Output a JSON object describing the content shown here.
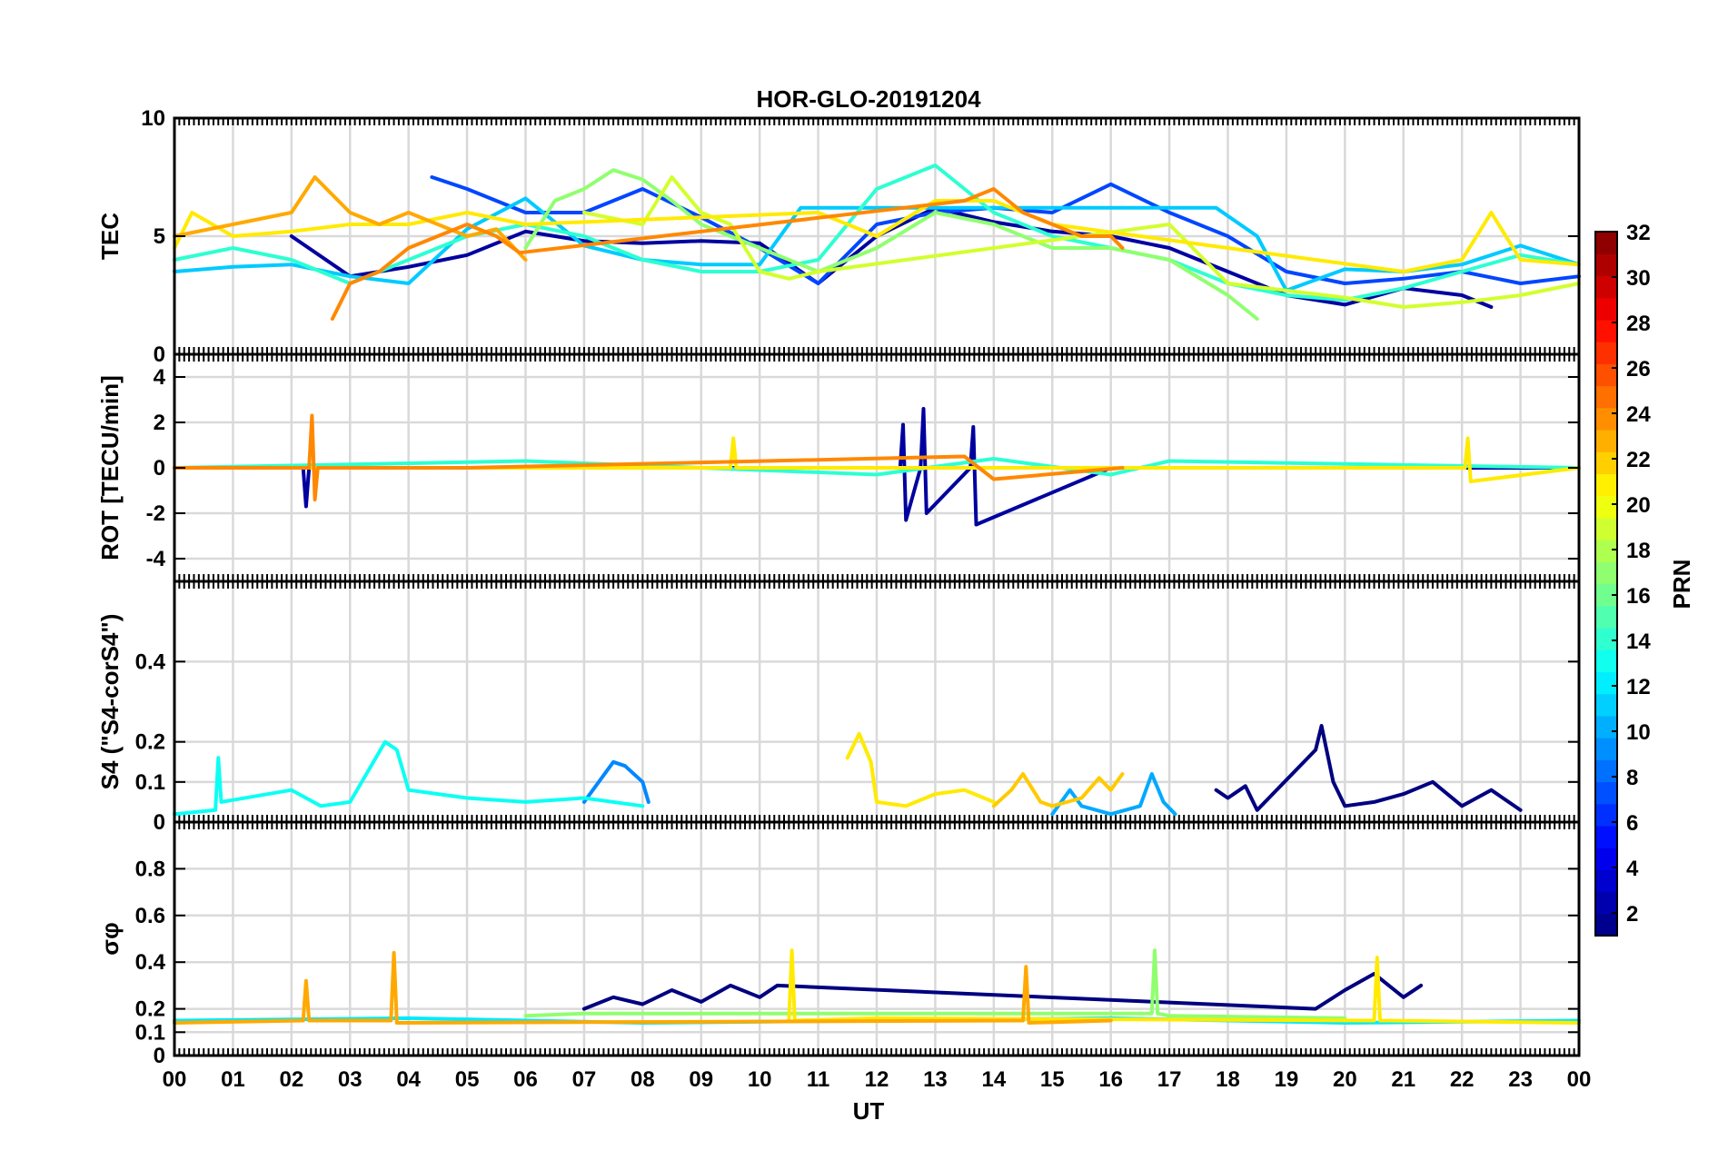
{
  "chart_data": {
    "type": "line",
    "title": "HOR-GLO-20191204",
    "xlabel": "UT",
    "x_tick_labels": [
      "00",
      "01",
      "02",
      "03",
      "04",
      "05",
      "06",
      "07",
      "08",
      "09",
      "10",
      "11",
      "12",
      "13",
      "14",
      "15",
      "16",
      "17",
      "18",
      "19",
      "20",
      "21",
      "22",
      "23",
      "00"
    ],
    "xlim": [
      0,
      24
    ],
    "grid": true,
    "colorbar": {
      "label": "PRN",
      "colormap": "jet",
      "range": [
        1,
        32
      ],
      "tick_labels": [
        "2",
        "4",
        "6",
        "8",
        "10",
        "12",
        "14",
        "16",
        "18",
        "20",
        "22",
        "24",
        "26",
        "28",
        "30",
        "32"
      ]
    },
    "panels": [
      {
        "ylabel": "TEC",
        "ylim": [
          0,
          10
        ],
        "y_tick_labels": [
          "0",
          "5",
          "10"
        ],
        "series": [
          {
            "name": "PRN 2",
            "prn": 2,
            "x": [
              2.0,
              3.0,
              4.0,
              5.0,
              6.0,
              7.0,
              8.0,
              9.0,
              10.0,
              11.0,
              12.0,
              13.0,
              14.0,
              15.0,
              16.0,
              17.0,
              18.0,
              19.0,
              20.0,
              21.0,
              22.0,
              22.5
            ],
            "y": [
              5.0,
              3.3,
              3.7,
              4.2,
              5.2,
              4.8,
              4.7,
              4.8,
              4.7,
              3.0,
              5.0,
              6.2,
              5.6,
              5.2,
              5.0,
              4.5,
              3.5,
              2.5,
              2.1,
              2.8,
              2.5,
              2.0
            ]
          },
          {
            "name": "PRN 7",
            "prn": 7,
            "x": [
              4.4,
              5.0,
              6.0,
              7.0,
              8.0,
              9.0,
              10.0,
              11.0,
              12.0,
              13.0,
              14.0,
              15.0,
              16.0,
              17.0,
              18.0,
              19.0,
              20.0,
              21.0,
              22.0,
              23.0,
              24.0
            ],
            "y": [
              7.5,
              7.0,
              6.0,
              6.0,
              7.0,
              5.8,
              4.5,
              3.0,
              5.5,
              6.0,
              6.2,
              6.0,
              7.2,
              6.0,
              5.0,
              3.5,
              3.0,
              3.2,
              3.5,
              3.0,
              3.3
            ]
          },
          {
            "name": "PRN 11",
            "prn": 11,
            "x": [
              0.0,
              1.0,
              2.0,
              3.0,
              4.0,
              5.0,
              6.0,
              7.0,
              8.0,
              9.0,
              10.0,
              10.7,
              17.8,
              18.5,
              19.0,
              20.0,
              21.0,
              22.0,
              23.0,
              24.0
            ],
            "y": [
              3.5,
              3.7,
              3.8,
              3.3,
              3.0,
              5.3,
              6.6,
              4.6,
              4.0,
              3.8,
              3.8,
              6.2,
              6.2,
              5.0,
              2.7,
              3.6,
              3.5,
              3.8,
              4.6,
              3.8
            ]
          },
          {
            "name": "PRN 14",
            "prn": 14,
            "x": [
              0.0,
              1.0,
              2.0,
              3.0,
              4.0,
              5.0,
              6.0,
              7.0,
              8.0,
              9.0,
              10.0,
              11.0,
              12.0,
              13.0,
              14.0,
              15.0,
              16.0,
              17.0,
              18.0,
              19.0,
              20.0,
              21.0,
              22.0,
              23.0,
              24.0
            ],
            "y": [
              4.0,
              4.5,
              4.0,
              3.0,
              4.0,
              5.0,
              5.5,
              5.0,
              4.0,
              3.5,
              3.5,
              4.0,
              7.0,
              8.0,
              6.0,
              5.0,
              4.5,
              4.0,
              3.0,
              2.5,
              2.3,
              2.8,
              3.5,
              4.2,
              3.8
            ]
          },
          {
            "name": "PRN 17",
            "prn": 17,
            "x": [
              6.0,
              6.5,
              7.0,
              7.5,
              8.0,
              8.5,
              9.0,
              10.0,
              11.0,
              12.0,
              13.0,
              14.0,
              15.0,
              16.0,
              17.0,
              18.0,
              18.5
            ],
            "y": [
              4.5,
              6.5,
              7.0,
              7.8,
              7.4,
              6.5,
              5.5,
              4.5,
              3.5,
              4.5,
              6.0,
              5.5,
              4.5,
              4.5,
              4.0,
              2.5,
              1.5
            ]
          },
          {
            "name": "PRN 19",
            "prn": 19,
            "x": [
              7.0,
              8.0,
              8.5,
              9.0,
              9.5,
              10.0,
              10.5,
              11.0,
              17.0,
              18.0,
              19.0,
              20.0,
              21.0,
              22.0,
              23.0,
              24.0
            ],
            "y": [
              6.0,
              5.5,
              7.5,
              6.0,
              5.5,
              3.5,
              3.2,
              3.5,
              5.5,
              3.0,
              2.7,
              2.4,
              2.0,
              2.2,
              2.5,
              3.0
            ]
          },
          {
            "name": "PRN 21",
            "prn": 21,
            "x": [
              0.0,
              0.3,
              1.0,
              2.0,
              3.0,
              4.0,
              5.0,
              6.0,
              11.0,
              12.0,
              13.0,
              14.0,
              15.0,
              21.0,
              22.0,
              22.5,
              23.0,
              24.0
            ],
            "y": [
              4.5,
              6.0,
              5.0,
              5.2,
              5.5,
              5.5,
              6.0,
              5.5,
              6.0,
              5.0,
              6.5,
              6.5,
              5.5,
              3.5,
              4.0,
              6.0,
              4.0,
              3.8
            ]
          },
          {
            "name": "PRN 23",
            "prn": 23,
            "x": [
              0.0,
              1.0,
              2.0,
              2.4,
              3.0,
              3.5,
              4.0,
              5.0,
              5.5,
              6.0
            ],
            "y": [
              5.0,
              5.5,
              6.0,
              7.5,
              6.0,
              5.5,
              6.0,
              5.0,
              5.3,
              4.0
            ]
          },
          {
            "name": "PRN 24",
            "prn": 24,
            "x": [
              2.7,
              3.0,
              3.5,
              4.0,
              4.5,
              5.0,
              5.5,
              5.9,
              13.5,
              14.0,
              14.5,
              15.0,
              15.5,
              16.0,
              16.2
            ],
            "y": [
              1.5,
              3.0,
              3.5,
              4.5,
              5.0,
              5.5,
              5.0,
              4.3,
              6.5,
              7.0,
              6.0,
              5.5,
              5.0,
              5.0,
              4.5
            ]
          }
        ]
      },
      {
        "ylabel": "ROT [TECU/min]",
        "ylim": [
          -5,
          5
        ],
        "y_tick_labels": [
          "-4",
          "-2",
          "0",
          "2",
          "4"
        ],
        "series": [
          {
            "name": "PRN 2",
            "prn": 2,
            "x": [
              0.0,
              2.2,
              2.25,
              2.3,
              5.0,
              12.4,
              12.45,
              12.5,
              12.75,
              12.8,
              12.85,
              13.6,
              13.65,
              13.7,
              16.0,
              24.0
            ],
            "y": [
              0.0,
              0.0,
              -1.7,
              0.0,
              0.0,
              0.0,
              1.9,
              -2.3,
              0.0,
              2.6,
              -2.0,
              0.0,
              1.8,
              -2.5,
              0.0,
              0.0
            ]
          },
          {
            "name": "PRN 14",
            "prn": 14,
            "x": [
              0.0,
              6.0,
              12.0,
              14.0,
              16.0,
              17.0,
              24.0
            ],
            "y": [
              0.0,
              0.3,
              -0.3,
              0.4,
              -0.3,
              0.3,
              0.0
            ]
          },
          {
            "name": "PRN 21",
            "prn": 21,
            "x": [
              0.0,
              9.5,
              9.55,
              9.6,
              12.0,
              22.05,
              22.1,
              22.15,
              24.0
            ],
            "y": [
              0.0,
              0.0,
              1.3,
              0.0,
              0.0,
              0.0,
              1.3,
              -0.6,
              0.0
            ]
          },
          {
            "name": "PRN 24",
            "prn": 24,
            "x": [
              0.0,
              2.3,
              2.35,
              2.4,
              2.45,
              5.0,
              13.5,
              14.0,
              16.2
            ],
            "y": [
              0.0,
              0.0,
              2.3,
              -1.4,
              0.0,
              0.0,
              0.5,
              -0.5,
              0.0
            ]
          }
        ]
      },
      {
        "ylabel": "S4 (\"S4-corS4\")",
        "ylim": [
          0,
          0.6
        ],
        "y_tick_labels": [
          "0",
          "0.1",
          "0.2",
          "0.4"
        ],
        "series": [
          {
            "name": "PRN 1",
            "prn": 1,
            "x": [
              17.8,
              18.0,
              18.3,
              18.5,
              19.5,
              19.6,
              19.8,
              20.0,
              20.5,
              21.0,
              21.5,
              22.0,
              22.5,
              23.0
            ],
            "y": [
              0.08,
              0.06,
              0.09,
              0.03,
              0.18,
              0.24,
              0.1,
              0.04,
              0.05,
              0.07,
              0.1,
              0.04,
              0.08,
              0.03
            ]
          },
          {
            "name": "PRN 9",
            "prn": 9,
            "x": [
              7.0,
              7.5,
              7.7,
              8.0,
              8.1
            ],
            "y": [
              0.05,
              0.15,
              0.14,
              0.1,
              0.05
            ]
          },
          {
            "name": "PRN 10",
            "prn": 10,
            "x": [
              15.0,
              15.3,
              15.5,
              16.0,
              16.5,
              16.7,
              16.9,
              17.1
            ],
            "y": [
              0.02,
              0.08,
              0.04,
              0.02,
              0.04,
              0.12,
              0.05,
              0.02
            ]
          },
          {
            "name": "PRN 13",
            "prn": 13,
            "x": [
              0.0,
              0.7,
              0.75,
              0.8,
              2.0,
              2.5,
              3.0,
              3.6,
              3.8,
              4.0,
              5.0,
              6.0,
              7.0,
              8.0
            ],
            "y": [
              0.02,
              0.03,
              0.16,
              0.05,
              0.08,
              0.04,
              0.05,
              0.2,
              0.18,
              0.08,
              0.06,
              0.05,
              0.06,
              0.04
            ]
          },
          {
            "name": "PRN 21",
            "prn": 21,
            "x": [
              11.5,
              11.7,
              11.9,
              12.0,
              12.5,
              13.0,
              13.5,
              14.0
            ],
            "y": [
              0.16,
              0.22,
              0.15,
              0.05,
              0.04,
              0.07,
              0.08,
              0.05
            ]
          },
          {
            "name": "PRN 22",
            "prn": 22,
            "x": [
              14.0,
              14.3,
              14.5,
              14.8,
              15.0,
              15.5,
              15.8,
              16.0,
              16.2
            ],
            "y": [
              0.04,
              0.08,
              0.12,
              0.05,
              0.04,
              0.06,
              0.11,
              0.08,
              0.12
            ]
          }
        ]
      },
      {
        "ylabel": "σφ",
        "ylim": [
          0,
          1
        ],
        "y_tick_labels": [
          "0",
          "0.1",
          "0.2",
          "0.4",
          "0.6",
          "0.8"
        ],
        "series": [
          {
            "name": "PRN 1",
            "prn": 1,
            "x": [
              7.0,
              7.5,
              8.0,
              8.5,
              9.0,
              9.5,
              10.0,
              10.3,
              19.5,
              20.0,
              20.5,
              21.0,
              21.3
            ],
            "y": [
              0.2,
              0.25,
              0.22,
              0.28,
              0.23,
              0.3,
              0.25,
              0.3,
              0.2,
              0.28,
              0.35,
              0.25,
              0.3
            ]
          },
          {
            "name": "PRN 12",
            "prn": 12,
            "x": [
              0.0,
              4.0,
              8.0,
              12.0,
              16.0,
              20.0,
              24.0
            ],
            "y": [
              0.15,
              0.16,
              0.14,
              0.15,
              0.16,
              0.14,
              0.15
            ]
          },
          {
            "name": "PRN 17",
            "prn": 17,
            "x": [
              6.0,
              7.0,
              16.7,
              16.75,
              16.8,
              17.0,
              20.0
            ],
            "y": [
              0.17,
              0.18,
              0.18,
              0.45,
              0.18,
              0.17,
              0.16
            ]
          },
          {
            "name": "PRN 21",
            "prn": 21,
            "x": [
              10.5,
              10.55,
              10.6,
              12.0,
              20.5,
              20.55,
              20.6,
              24.0
            ],
            "y": [
              0.15,
              0.45,
              0.15,
              0.16,
              0.15,
              0.42,
              0.15,
              0.14
            ]
          },
          {
            "name": "PRN 23",
            "prn": 23,
            "x": [
              0.0,
              2.2,
              2.25,
              2.3,
              3.7,
              3.75,
              3.8,
              14.5,
              14.55,
              14.6,
              16.0
            ],
            "y": [
              0.14,
              0.15,
              0.32,
              0.15,
              0.15,
              0.44,
              0.14,
              0.15,
              0.38,
              0.14,
              0.15
            ]
          }
        ]
      }
    ]
  }
}
